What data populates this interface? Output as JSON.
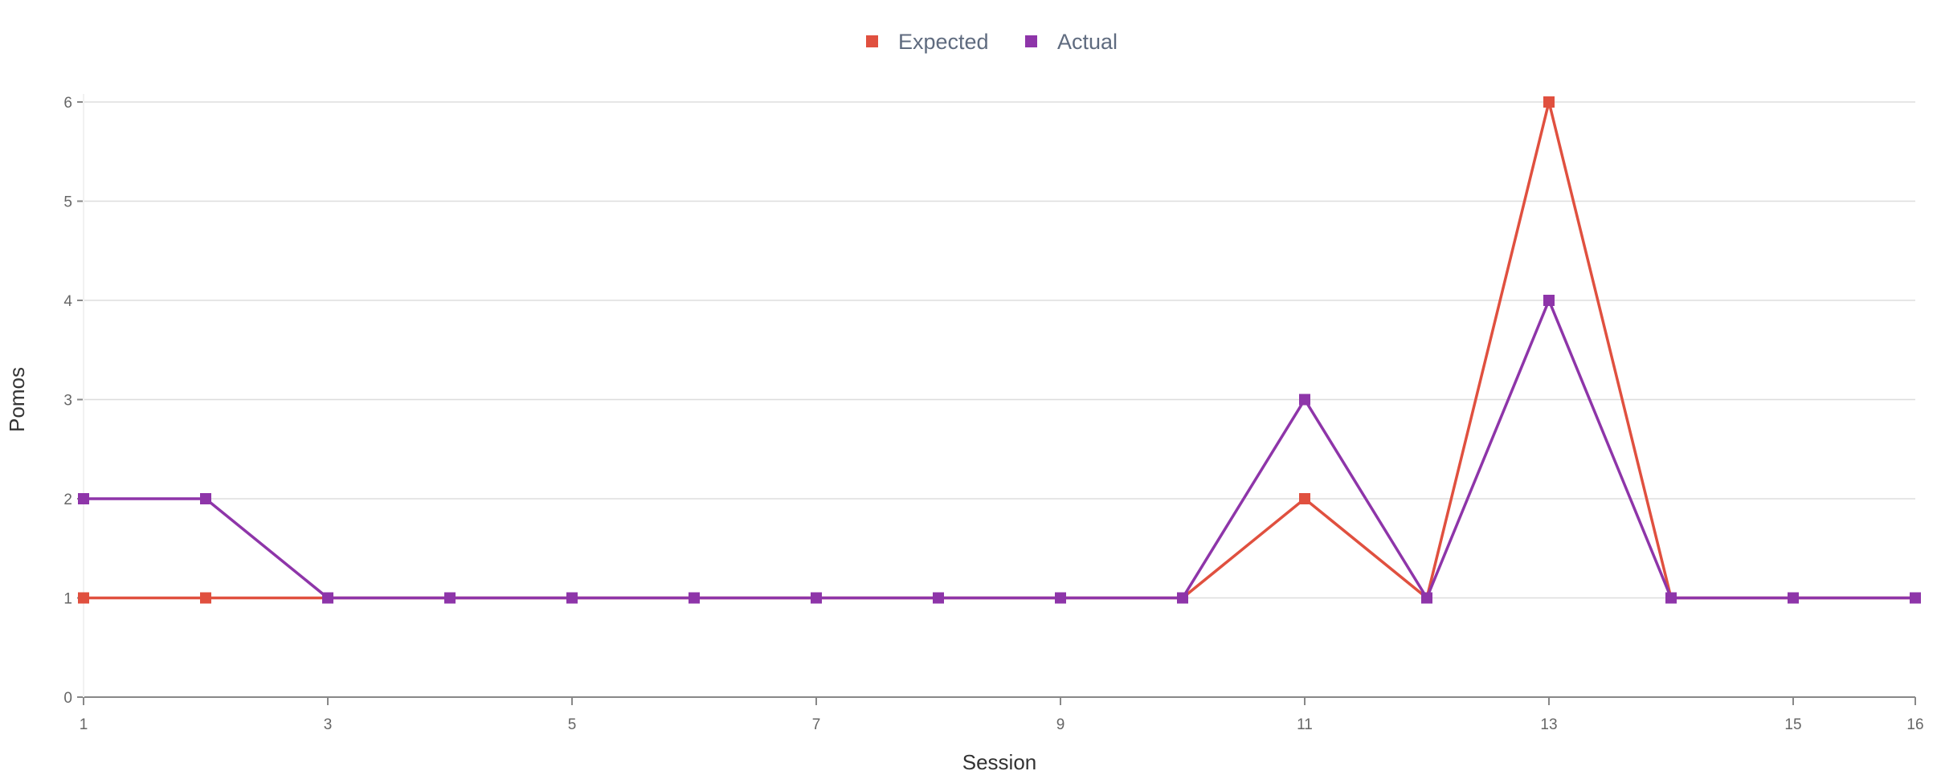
{
  "chart_data": {
    "type": "line",
    "xlabel": "Session",
    "ylabel": "Pomos",
    "x": [
      1,
      2,
      3,
      4,
      5,
      6,
      7,
      8,
      9,
      10,
      11,
      12,
      13,
      14,
      15,
      16
    ],
    "xticks": [
      "1",
      "3",
      "5",
      "7",
      "9",
      "11",
      "13",
      "15",
      "16"
    ],
    "yticks": [
      "0",
      "1",
      "2",
      "3",
      "4",
      "5",
      "6"
    ],
    "xlim": [
      1,
      16
    ],
    "ylim": [
      0,
      6
    ],
    "grid": true,
    "legend_position": "top-center",
    "series": [
      {
        "name": "Expected",
        "color": "#e0503f",
        "values": [
          1,
          1,
          1,
          1,
          1,
          1,
          1,
          1,
          1,
          1,
          2,
          1,
          6,
          1,
          1,
          1
        ]
      },
      {
        "name": "Actual",
        "color": "#8e35a9",
        "values": [
          2,
          2,
          1,
          1,
          1,
          1,
          1,
          1,
          1,
          1,
          3,
          1,
          4,
          1,
          1,
          1
        ]
      }
    ]
  }
}
